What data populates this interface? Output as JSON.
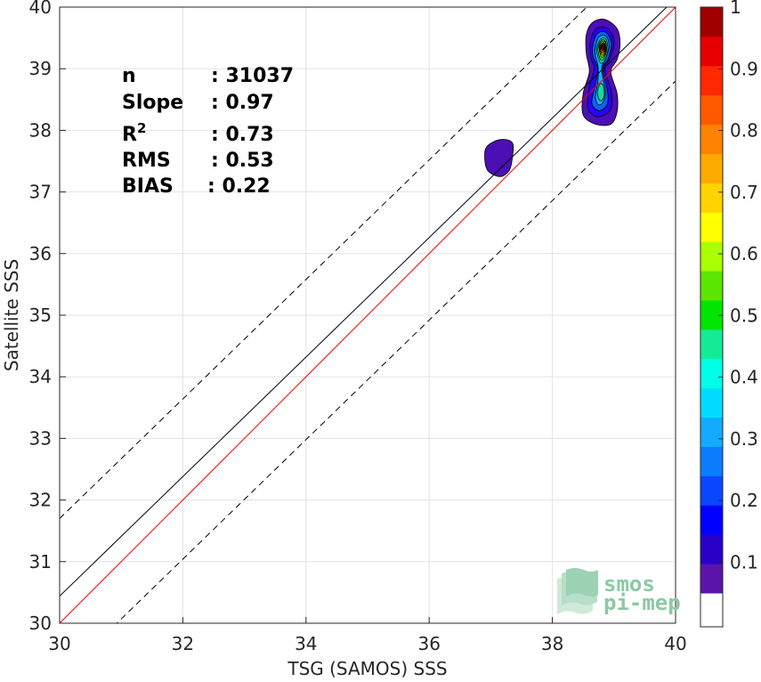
{
  "chart_data": {
    "type": "contour",
    "title": "",
    "xlabel": "TSG (SAMOS) SSS",
    "ylabel": "Satellite SSS",
    "xlim": [
      30,
      40
    ],
    "ylim": [
      30,
      40
    ],
    "x_ticks": [
      "30",
      "32",
      "34",
      "36",
      "38",
      "40"
    ],
    "y_ticks": [
      "30",
      "31",
      "32",
      "33",
      "34",
      "35",
      "36",
      "37",
      "38",
      "39",
      "40"
    ],
    "grid": true,
    "stats": [
      {
        "name": "n",
        "value": ": 31037"
      },
      {
        "name": "Slope",
        "value": ": 0.97"
      },
      {
        "name": "R",
        "sup": "2",
        "value": ": 0.73"
      },
      {
        "name": "RMS",
        "value": ": 0.53"
      },
      {
        "name": "BIAS",
        "value": ": 0.22"
      }
    ],
    "lines": [
      {
        "kind": "one_to_one",
        "color": "#ff0000",
        "points": [
          [
            30,
            30
          ],
          [
            40,
            40
          ]
        ]
      },
      {
        "kind": "fit",
        "color": "#000000",
        "points": [
          [
            30,
            30.44
          ],
          [
            40,
            40.14
          ]
        ]
      },
      {
        "kind": "fit_upper",
        "color": "#000000",
        "dashed": true,
        "points": [
          [
            30,
            31.7
          ],
          [
            40,
            41.4
          ]
        ]
      },
      {
        "kind": "fit_lower",
        "color": "#000000",
        "dashed": true,
        "points": [
          [
            30,
            29.1
          ],
          [
            40,
            38.8
          ]
        ]
      }
    ],
    "contours": [
      {
        "level": 0.05,
        "color": "#4b0fb4",
        "points": [
          [
            38.55,
            39.55
          ],
          [
            38.65,
            39.75
          ],
          [
            38.85,
            39.8
          ],
          [
            39.05,
            39.65
          ],
          [
            39.1,
            39.4
          ],
          [
            39.05,
            39.15
          ],
          [
            38.95,
            38.95
          ],
          [
            39.05,
            38.6
          ],
          [
            39.05,
            38.3
          ],
          [
            38.95,
            38.1
          ],
          [
            38.7,
            38.1
          ],
          [
            38.5,
            38.25
          ],
          [
            38.5,
            38.6
          ],
          [
            38.6,
            38.95
          ],
          [
            38.55,
            39.25
          ]
        ]
      },
      {
        "level": 0.05,
        "color": "#4b0fb4",
        "points": [
          [
            36.9,
            37.6
          ],
          [
            36.95,
            37.75
          ],
          [
            37.15,
            37.85
          ],
          [
            37.35,
            37.8
          ],
          [
            37.35,
            37.55
          ],
          [
            37.3,
            37.35
          ],
          [
            37.15,
            37.25
          ],
          [
            36.95,
            37.35
          ]
        ]
      },
      {
        "level": 0.1,
        "color": "#2a00ff",
        "points": [
          [
            38.62,
            39.45
          ],
          [
            38.72,
            39.65
          ],
          [
            38.9,
            39.65
          ],
          [
            39.0,
            39.45
          ],
          [
            38.95,
            39.2
          ],
          [
            38.85,
            39.0
          ],
          [
            38.95,
            38.65
          ],
          [
            38.95,
            38.35
          ],
          [
            38.75,
            38.22
          ],
          [
            38.58,
            38.35
          ],
          [
            38.6,
            38.7
          ],
          [
            38.68,
            39.0
          ],
          [
            38.62,
            39.2
          ]
        ]
      },
      {
        "level": 0.2,
        "color": "#0a64ff",
        "points": [
          [
            38.66,
            39.4
          ],
          [
            38.74,
            39.58
          ],
          [
            38.88,
            39.58
          ],
          [
            38.96,
            39.4
          ],
          [
            38.9,
            39.15
          ],
          [
            38.82,
            39.0
          ],
          [
            38.9,
            38.6
          ],
          [
            38.88,
            38.4
          ],
          [
            38.75,
            38.32
          ],
          [
            38.64,
            38.45
          ],
          [
            38.7,
            38.75
          ],
          [
            38.74,
            39.0
          ],
          [
            38.66,
            39.2
          ]
        ]
      },
      {
        "level": 0.3,
        "color": "#14b4ff",
        "points": [
          [
            38.7,
            39.35
          ],
          [
            38.76,
            39.52
          ],
          [
            38.88,
            39.52
          ],
          [
            38.92,
            39.35
          ],
          [
            38.86,
            39.15
          ],
          [
            38.8,
            39.0
          ],
          [
            38.86,
            38.62
          ],
          [
            38.82,
            38.45
          ],
          [
            38.74,
            38.42
          ],
          [
            38.7,
            38.55
          ],
          [
            38.74,
            38.8
          ],
          [
            38.74,
            39.05
          ],
          [
            38.7,
            39.2
          ]
        ]
      },
      {
        "level": 0.4,
        "color": "#00ffe6",
        "points": [
          [
            38.72,
            39.32
          ],
          [
            38.78,
            39.48
          ],
          [
            38.87,
            39.48
          ],
          [
            38.9,
            39.3
          ],
          [
            38.84,
            39.12
          ],
          [
            38.78,
            39.1
          ],
          [
            38.74,
            39.2
          ]
        ]
      },
      {
        "level": 0.45,
        "color": "#14dca0",
        "points": [
          [
            38.73,
            38.6
          ],
          [
            38.77,
            38.75
          ],
          [
            38.83,
            38.72
          ],
          [
            38.84,
            38.55
          ],
          [
            38.78,
            38.48
          ]
        ]
      },
      {
        "level": 0.5,
        "color": "#28e628",
        "points": [
          [
            38.74,
            39.32
          ],
          [
            38.79,
            39.46
          ],
          [
            38.86,
            39.45
          ],
          [
            38.88,
            39.3
          ],
          [
            38.83,
            39.15
          ],
          [
            38.78,
            39.15
          ]
        ]
      },
      {
        "level": 0.6,
        "color": "#b4ff00",
        "points": [
          [
            38.76,
            39.34
          ],
          [
            38.8,
            39.44
          ],
          [
            38.86,
            39.43
          ],
          [
            38.87,
            39.3
          ],
          [
            38.83,
            39.2
          ],
          [
            38.79,
            39.2
          ]
        ]
      },
      {
        "level": 0.7,
        "color": "#ffd200",
        "points": [
          [
            38.77,
            39.34
          ],
          [
            38.81,
            39.42
          ],
          [
            38.85,
            39.41
          ],
          [
            38.86,
            39.3
          ],
          [
            38.83,
            39.23
          ],
          [
            38.8,
            39.23
          ]
        ]
      },
      {
        "level": 0.8,
        "color": "#ff6e00",
        "points": [
          [
            38.78,
            39.34
          ],
          [
            38.82,
            39.41
          ],
          [
            38.85,
            39.39
          ],
          [
            38.85,
            39.3
          ],
          [
            38.82,
            39.26
          ],
          [
            38.79,
            39.27
          ]
        ]
      },
      {
        "level": 0.9,
        "color": "#ff1e00",
        "points": [
          [
            38.79,
            39.35
          ],
          [
            38.82,
            39.4
          ],
          [
            38.84,
            39.38
          ],
          [
            38.84,
            39.31
          ],
          [
            38.81,
            39.29
          ]
        ]
      },
      {
        "level": 1.0,
        "color": "#a00000",
        "points": [
          [
            38.8,
            39.35
          ],
          [
            38.82,
            39.38
          ],
          [
            38.83,
            39.36
          ],
          [
            38.83,
            39.32
          ],
          [
            38.81,
            39.32
          ]
        ]
      }
    ],
    "colorbar": {
      "range": [
        0,
        1
      ],
      "ticks": [
        "0.1",
        "0.2",
        "0.3",
        "0.4",
        "0.5",
        "0.6",
        "0.7",
        "0.8",
        "0.9",
        "1"
      ],
      "bands": [
        "#ffffff",
        "#5a14aa",
        "#2800c8",
        "#0000ff",
        "#0a46ff",
        "#0a7dff",
        "#14aaff",
        "#00dcff",
        "#00ffe6",
        "#14eb96",
        "#00e600",
        "#5ae600",
        "#aaff00",
        "#ffff00",
        "#ffd200",
        "#ffaa00",
        "#ff8200",
        "#ff5a00",
        "#ff2800",
        "#e60000",
        "#a00000"
      ]
    },
    "logo": {
      "line1": "smos",
      "line2": "pi-mep"
    }
  }
}
